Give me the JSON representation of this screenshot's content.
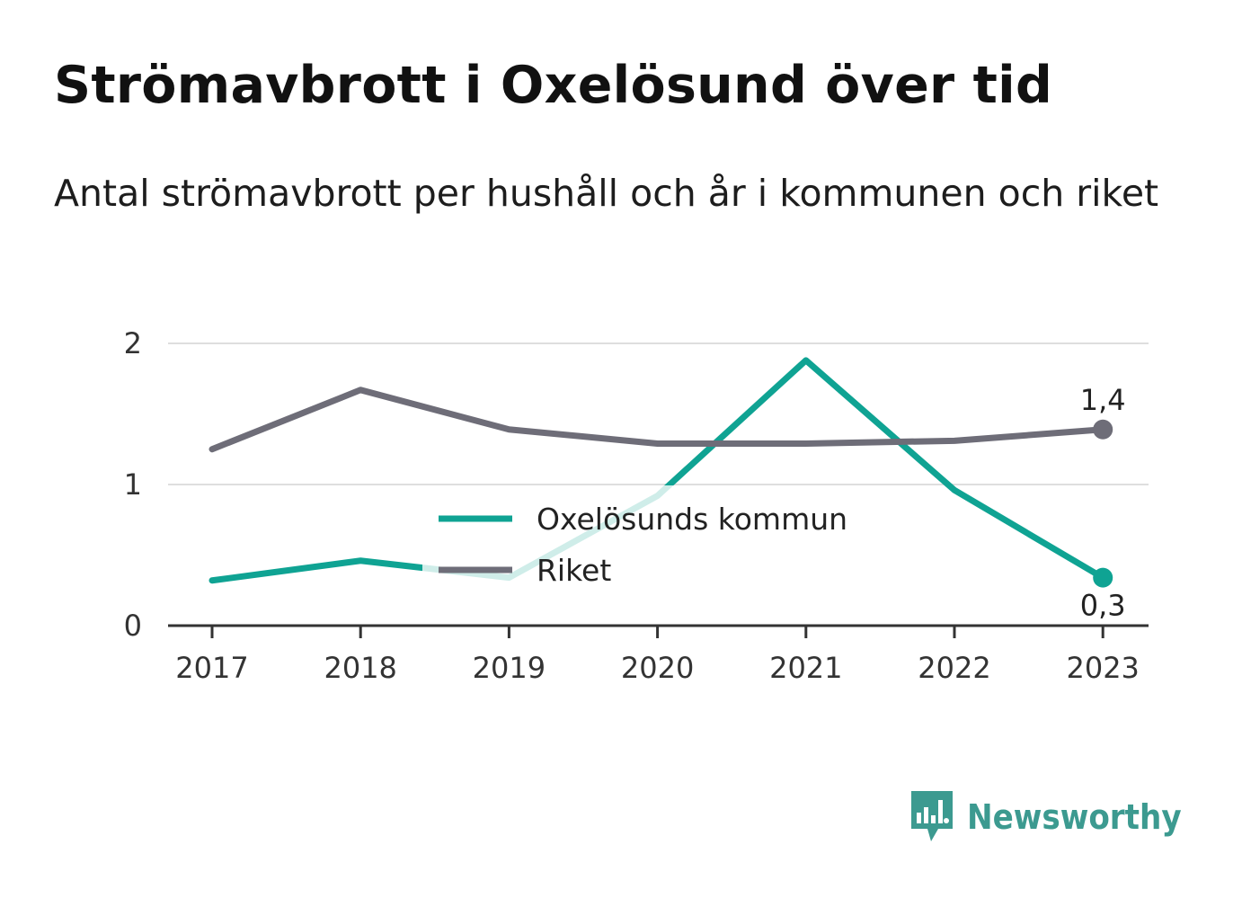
{
  "title": "Strömavbrott i Oxelösund över tid",
  "subtitle": "Antal strömavbrott per hushåll och år i kommunen och riket",
  "brand": {
    "name": "Newsworthy"
  },
  "chart_data": {
    "type": "line",
    "x": [
      "2017",
      "2018",
      "2019",
      "2020",
      "2021",
      "2022",
      "2023"
    ],
    "ylim": [
      0,
      2
    ],
    "yticks": [
      "0",
      "1",
      "2"
    ],
    "grid": true,
    "legend_position": "center",
    "series": [
      {
        "name": "Oxelösunds kommun",
        "color": "#0fa393",
        "values": [
          0.32,
          0.46,
          0.34,
          0.92,
          1.88,
          0.96,
          0.34
        ],
        "end_label": "0,3"
      },
      {
        "name": "Riket",
        "color": "#6e6d78",
        "values": [
          1.25,
          1.67,
          1.39,
          1.29,
          1.29,
          1.31,
          1.39
        ],
        "end_label": "1,4"
      }
    ]
  }
}
